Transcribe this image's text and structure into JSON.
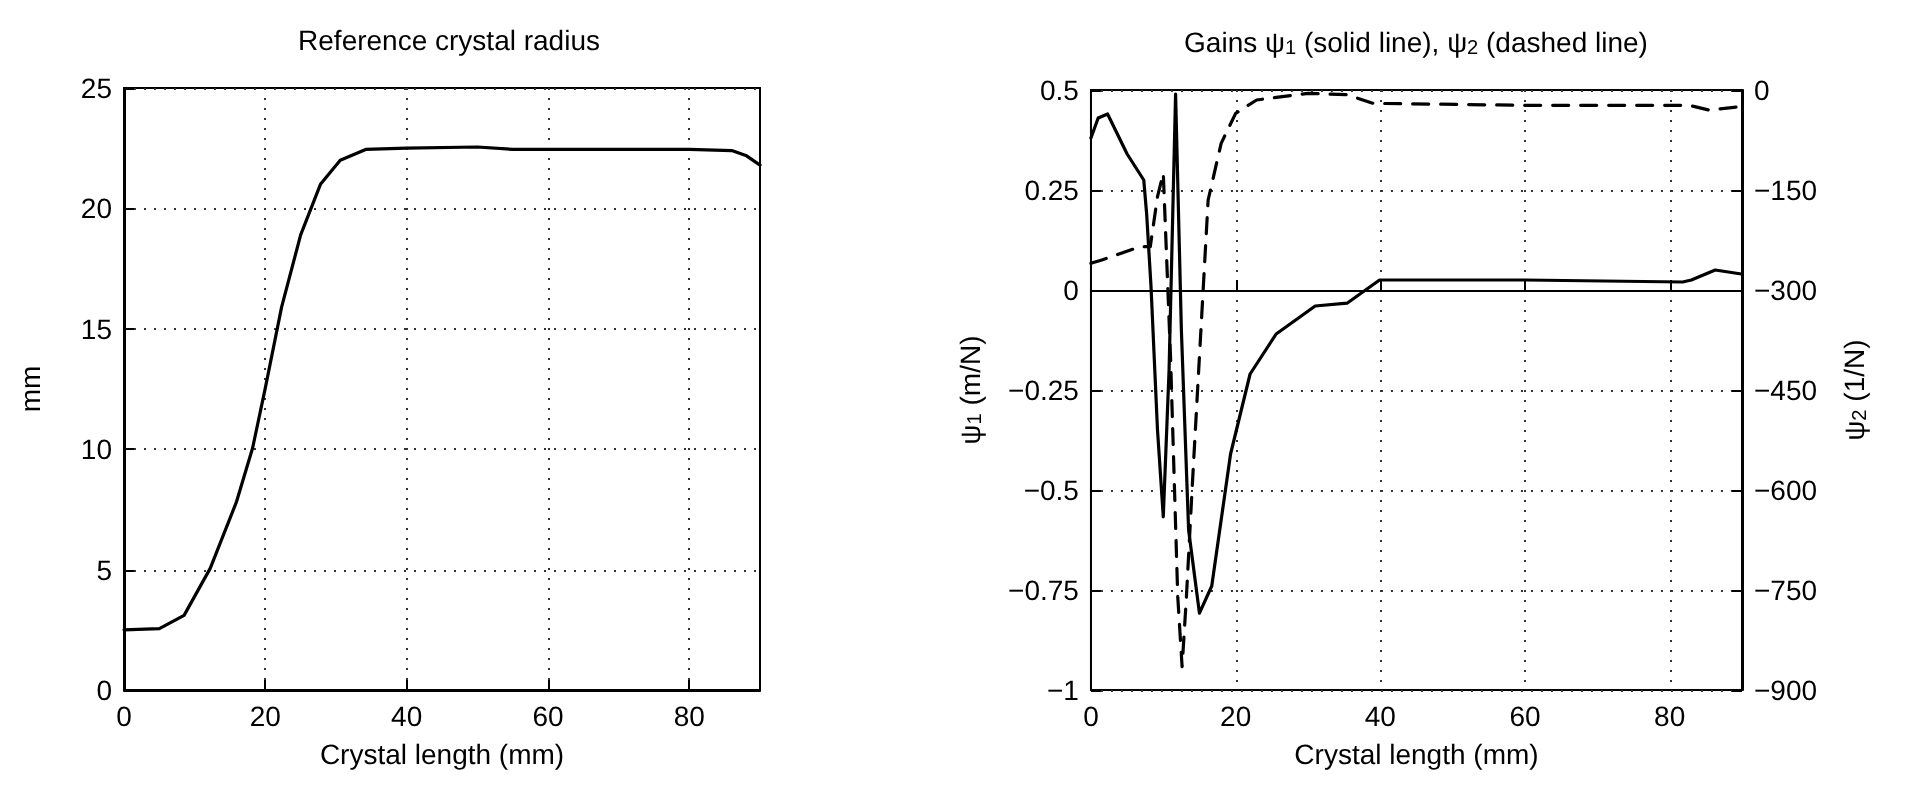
{
  "chart_data": [
    {
      "type": "line",
      "title": "Reference crystal radius",
      "xlabel": "Crystal length (mm)",
      "ylabel": "mm",
      "xlim": [
        0,
        90
      ],
      "xticks": [
        0,
        20,
        40,
        60,
        80
      ],
      "ylim": [
        0,
        25
      ],
      "yticks": [
        0,
        5,
        10,
        15,
        20,
        25
      ],
      "grid": true,
      "series": [
        {
          "color": "#000000",
          "line_style": "solid",
          "x": [
            0,
            5,
            8.5,
            12.2,
            15.9,
            18.2,
            20,
            22.3,
            25,
            27.8,
            30.6,
            34.2,
            40,
            50,
            55,
            80,
            86,
            88,
            90
          ],
          "values": [
            2.5,
            2.55,
            3.1,
            5.05,
            7.8,
            10.05,
            12.55,
            15.9,
            18.9,
            21,
            22,
            22.45,
            22.5,
            22.55,
            22.45,
            22.45,
            22.4,
            22.2,
            21.8
          ]
        }
      ]
    },
    {
      "type": "line",
      "title": "Gains ψ$_{1}$ (solid line), ψ$_{2}$ (dashed line)",
      "xlabel": "Crystal length (mm)",
      "ylabel": "ψ$_{1}$ (m/N)",
      "y2label": "ψ$_{2}$ (1/N)",
      "xlim": [
        0,
        90
      ],
      "xticks": [
        0,
        20,
        40,
        60,
        80
      ],
      "ylim": [
        -1,
        0.5
      ],
      "yticks": [
        {
          "value": -1,
          "label": "−1"
        },
        {
          "value": -0.75,
          "label": "−0.75"
        },
        {
          "value": -0.5,
          "label": "−0.5"
        },
        {
          "value": -0.25,
          "label": "−0.25"
        },
        0,
        0.25,
        0.5
      ],
      "y2lim": [
        -900,
        0
      ],
      "y2ticks": [
        {
          "value": -900,
          "label": "−900"
        },
        {
          "value": -750,
          "label": "−750"
        },
        {
          "value": -600,
          "label": "−600"
        },
        {
          "value": -450,
          "label": "−450"
        },
        {
          "value": -300,
          "label": "−300"
        },
        {
          "value": -150,
          "label": "−150"
        },
        0
      ],
      "grid": true,
      "series": [
        {
          "color": "#000000",
          "line_style": "solid",
          "x": [
            0,
            1,
            2.3,
            5,
            7.3,
            7.7,
            8.3,
            9.2,
            10,
            10.8,
            11.7,
            12.5,
            13.5,
            15,
            16.7,
            19.3,
            22,
            25.6,
            31,
            35.4,
            39.9,
            60,
            81.8,
            83,
            86.3,
            89.9
          ],
          "values": [
            0.38,
            0.43,
            0.44,
            0.34,
            0.275,
            0.19,
            0.01,
            -0.35,
            -0.567,
            -0.2,
            0.49,
            -0.1,
            -0.6,
            -0.808,
            -0.74,
            -0.41,
            -0.21,
            -0.11,
            -0.04,
            -0.033,
            0.025,
            0.025,
            0.02,
            0.025,
            0.05,
            0.04
          ]
        },
        {
          "color": "#000000",
          "line_style": "dashed",
          "axis": "y2",
          "x": [
            0,
            1.5,
            6.8,
            8.2,
            9.2,
            10,
            11,
            12,
            12.6,
            13.2,
            14,
            16.2,
            18,
            20,
            22.9,
            30,
            35.4,
            39,
            60,
            82.7,
            85.4,
            89.9
          ],
          "values": [
            -260,
            -255,
            -235,
            -235,
            -160,
            -125,
            -400,
            -760,
            -865,
            -760,
            -595,
            -165,
            -80,
            -35,
            -15,
            -5,
            -7,
            -20,
            -23,
            -23,
            -30,
            -25
          ]
        }
      ]
    }
  ]
}
